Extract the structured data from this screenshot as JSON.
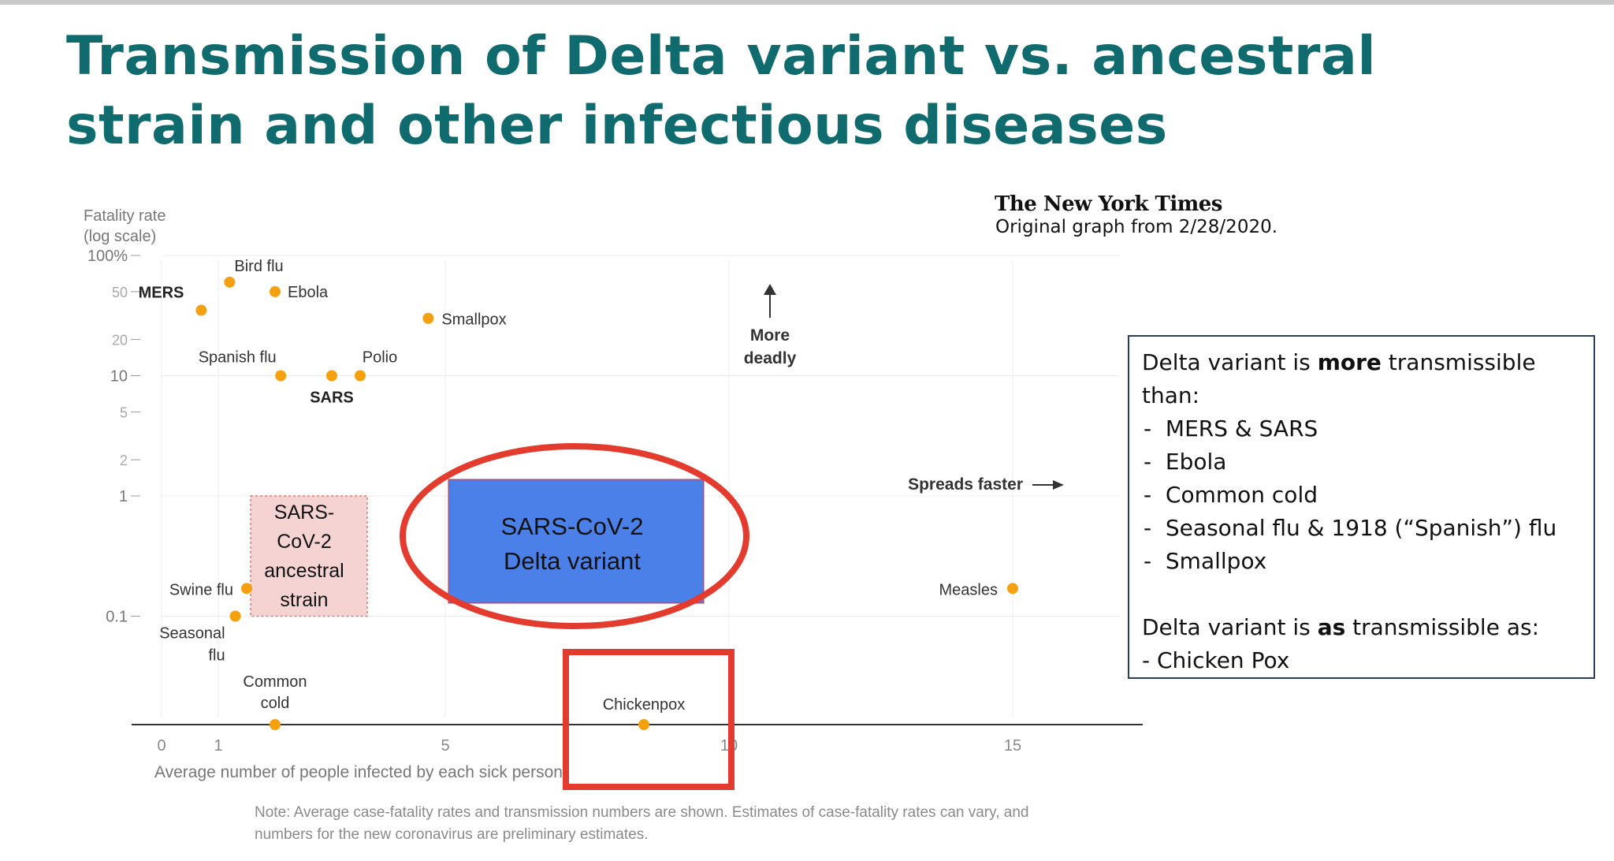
{
  "slide": {
    "title": "Transmission of Delta variant vs. ancestral strain and other infectious diseases"
  },
  "source": {
    "logo_text": "The New York Times",
    "caption": "Original graph from 2/28/2020."
  },
  "info_box": {
    "line1_pre": "Delta variant is ",
    "line1_bold": "more",
    "line1_post": " transmissible than:",
    "items": [
      "MERS & SARS",
      "Ebola",
      "Common cold",
      "Seasonal flu & 1918 (“Spanish”) flu",
      "Smallpox"
    ],
    "line2_pre": "Delta variant is ",
    "line2_bold": "as",
    "line2_post": " transmissible as:",
    "line2_item": "- Chicken Pox"
  },
  "note": "Note: Average case-fatality rates and transmission numbers are shown. Estimates of case-fatality rates can vary, and numbers for the new coronavirus are preliminary estimates.",
  "colors": {
    "title": "#0f6b6e",
    "point": "#f5a10f",
    "highlight_red": "#e33b2e",
    "delta_box": "#4a80e8",
    "ancestral_box": "#f6d3d3"
  },
  "chart_data": {
    "type": "scatter",
    "xlabel": "Average number of people infected by each sick person",
    "ylabel": "Fatality rate (log scale)",
    "y_scale": "log",
    "xlim": [
      0,
      17
    ],
    "x_ticks": [
      "0",
      "1",
      "5",
      "10",
      "15"
    ],
    "x_tick_values": [
      0,
      1,
      5,
      10,
      15
    ],
    "y_ticks": [
      "100%",
      "50",
      "20",
      "10",
      "5",
      "2",
      "1",
      "0.1"
    ],
    "y_tick_values": [
      100,
      50,
      20,
      10,
      5,
      2,
      1,
      0.1
    ],
    "points": [
      {
        "label": "MERS",
        "x": 0.7,
        "y": 35,
        "bold": true
      },
      {
        "label": "Bird flu",
        "x": 1.2,
        "y": 60
      },
      {
        "label": "Ebola",
        "x": 2.0,
        "y": 50
      },
      {
        "label": "Smallpox",
        "x": 4.7,
        "y": 30
      },
      {
        "label": "Spanish flu",
        "x": 2.1,
        "y": 10
      },
      {
        "label": "SARS",
        "x": 3.0,
        "y": 10,
        "bold": true
      },
      {
        "label": "Polio",
        "x": 3.5,
        "y": 10
      },
      {
        "label": "Swine flu",
        "x": 1.5,
        "y": 0.17
      },
      {
        "label": "Seasonal flu",
        "x": 1.3,
        "y": 0.1
      },
      {
        "label": "Common cold",
        "x": 2.0,
        "y": 0
      },
      {
        "label": "Chickenpox",
        "x": 8.5,
        "y": 0
      },
      {
        "label": "Measles",
        "x": 15.0,
        "y": 0.17
      }
    ],
    "regions": [
      {
        "label": "SARS-CoV-2 ancestral strain",
        "x": [
          1.5,
          3.5
        ],
        "y": [
          0.1,
          1
        ]
      },
      {
        "label": "SARS-CoV-2 Delta variant",
        "x": [
          5,
          9.5
        ],
        "y": [
          0.1,
          1
        ]
      }
    ],
    "annotations": {
      "more_deadly": "More deadly",
      "spreads_faster": "Spreads faster"
    }
  }
}
